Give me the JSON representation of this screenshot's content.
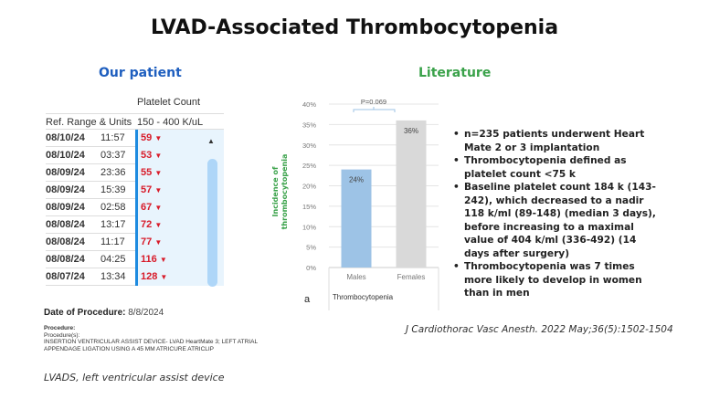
{
  "title": "LVAD-Associated Thrombocytopenia",
  "left": {
    "heading": "Our patient",
    "table": {
      "column_header": "Platelet Count",
      "ref_label": "Ref. Range & Units",
      "ref_value": "150 - 400 K/uL",
      "rows": [
        {
          "date": "08/10/24",
          "time": "11:57",
          "value": "59"
        },
        {
          "date": "08/10/24",
          "time": "03:37",
          "value": "53"
        },
        {
          "date": "08/09/24",
          "time": "23:36",
          "value": "55"
        },
        {
          "date": "08/09/24",
          "time": "15:39",
          "value": "57"
        },
        {
          "date": "08/09/24",
          "time": "02:58",
          "value": "67"
        },
        {
          "date": "08/08/24",
          "time": "13:17",
          "value": "72"
        },
        {
          "date": "08/08/24",
          "time": "11:17",
          "value": "77"
        },
        {
          "date": "08/08/24",
          "time": "04:25",
          "value": "116"
        },
        {
          "date": "08/07/24",
          "time": "13:34",
          "value": "128"
        }
      ],
      "low_flag_icon": "down-triangle-icon",
      "low_color": "#d81b2a"
    },
    "date_label": "Date of Procedure:",
    "date_value": "8/8/2024",
    "procedure_label": "Procedure:",
    "procedures_label": "Procedure(s):",
    "procedure_line1": "INSERTION VENTRICULAR ASSIST DEVICE- LVAD HeartMate 3; LEFT ATRIAL",
    "procedure_line2": "APPENDAGE LIGATION USING A 45 MM  ATRICURE ATRICLIP",
    "footnote": "LVADS, left ventricular assist device"
  },
  "right": {
    "heading": "Literature",
    "bullets": [
      "n=235 patients underwent Heart Mate 2 or 3 implantation",
      "Thrombocytopenia defined as platelet count <75 k",
      "Baseline platelet count 184 k (143-242), which decreased to a nadir 118 k/ml (89-148) (median 3 days), before increasing to a maximal value of 404 k/ml (336-492) (14 days after surgery)",
      "Thrombocytopenia was 7 times more likely to develop in women than in men"
    ],
    "citation": "J Cardiothorac Vasc Anesth. 2022 May;36(5):1502-1504"
  },
  "chart_data": {
    "type": "bar",
    "categories": [
      "Males",
      "Females"
    ],
    "values": [
      24,
      36
    ],
    "data_labels": [
      "24%",
      "36%"
    ],
    "colors": [
      "#9dc3e6",
      "#d9d9d9"
    ],
    "ylabel": "Incidence of thrombocytopenia",
    "xlabel": "Thrombocytopenia",
    "panel_label": "a",
    "annotation": "P=0.069",
    "ylim": [
      0,
      40
    ],
    "yticks": [
      "0%",
      "5%",
      "10%",
      "15%",
      "20%",
      "25%",
      "30%",
      "35%",
      "40%"
    ],
    "grid": true
  }
}
